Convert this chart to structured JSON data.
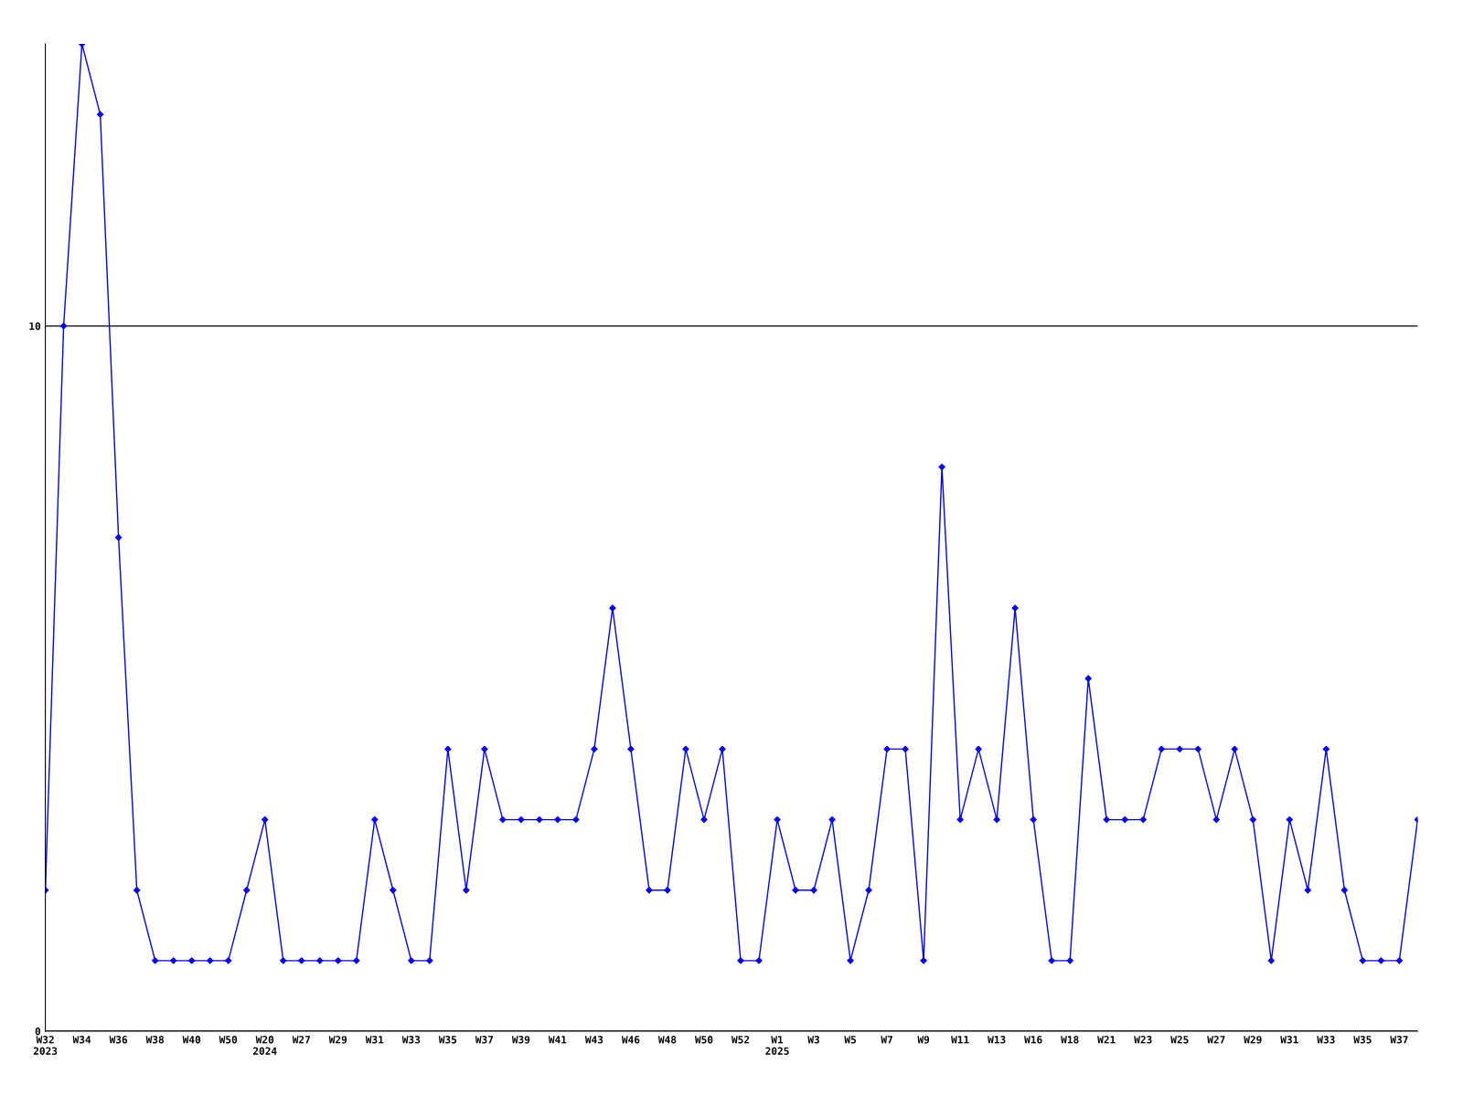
{
  "chart_data": {
    "type": "line",
    "categories": [
      "W32\n2023",
      null,
      "W34",
      null,
      "W36",
      null,
      "W38",
      null,
      "W40",
      null,
      "W50",
      null,
      "W20\n2024",
      null,
      "W27",
      null,
      "W29",
      null,
      "W31",
      null,
      "W33",
      null,
      "W35",
      null,
      "W37",
      null,
      "W39",
      null,
      "W41",
      null,
      "W43",
      null,
      "W46",
      null,
      "W48",
      null,
      "W50",
      null,
      "W52",
      null,
      "W1\n2025",
      null,
      "W3",
      null,
      "W5",
      null,
      "W7",
      null,
      "W9",
      null,
      "W11",
      null,
      "W13",
      null,
      "W16",
      null,
      "W18",
      null,
      "W21",
      null,
      "W23",
      null,
      "W25",
      null,
      "W27",
      null,
      "W29",
      null,
      "W31",
      null,
      "W33",
      null,
      "W35",
      null,
      "W37",
      null
    ],
    "series": [
      {
        "color": "#0000ff",
        "values": [
          2,
          10,
          14,
          13,
          7,
          2,
          1,
          1,
          1,
          1,
          1,
          2,
          3,
          1,
          1,
          1,
          1,
          1,
          3,
          2,
          1,
          1,
          4,
          2,
          4,
          3,
          3,
          3,
          3,
          3,
          4,
          6,
          4,
          2,
          2,
          4,
          3,
          4,
          1,
          1,
          3,
          2,
          2,
          3,
          1,
          2,
          4,
          4,
          1,
          8,
          3,
          4,
          3,
          6,
          3,
          1,
          1,
          5,
          3,
          3,
          3,
          4,
          4,
          4,
          3,
          4,
          3,
          1,
          3,
          2,
          4,
          2,
          1,
          1,
          1,
          3
        ]
      }
    ],
    "ylim": [
      0,
      14
    ],
    "yticks": [
      0,
      10
    ],
    "grid": "y",
    "marker": "diamond",
    "line_style": "solid",
    "legend": false
  }
}
